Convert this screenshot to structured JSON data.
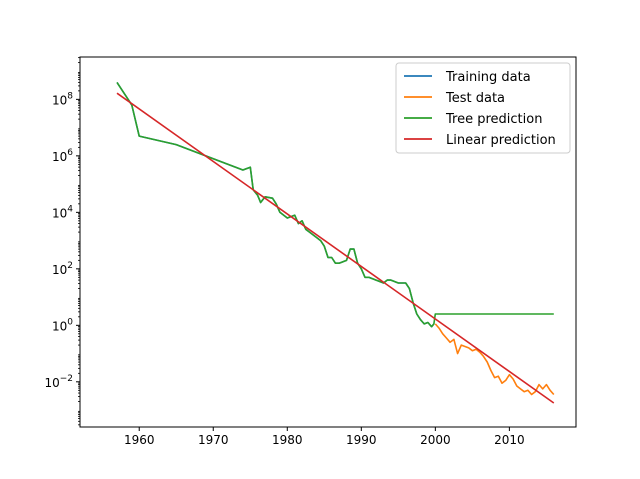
{
  "chart_data": {
    "type": "line",
    "title": "",
    "xlabel": "",
    "ylabel": "",
    "xlim": [
      1952,
      2019
    ],
    "ylim_log10": [
      -3.6,
      9.5
    ],
    "yscale": "log",
    "grid": false,
    "legend_position": "top-right",
    "x_ticks": [
      {
        "value": 1960,
        "label": "1960"
      },
      {
        "value": 1970,
        "label": "1970"
      },
      {
        "value": 1980,
        "label": "1980"
      },
      {
        "value": 1990,
        "label": "1990"
      },
      {
        "value": 2000,
        "label": "2000"
      },
      {
        "value": 2010,
        "label": "2010"
      }
    ],
    "y_ticks": [
      {
        "exp": 8,
        "base": "10",
        "sup": "8"
      },
      {
        "exp": 6,
        "base": "10",
        "sup": "6"
      },
      {
        "exp": 4,
        "base": "10",
        "sup": "4"
      },
      {
        "exp": 2,
        "base": "10",
        "sup": "2"
      },
      {
        "exp": 0,
        "base": "10",
        "sup": "0"
      },
      {
        "exp": -2,
        "base": "10",
        "sup": "−2"
      }
    ],
    "series": [
      {
        "name": "Training data",
        "color": "#1f77b4",
        "points_log10": [
          [
            1957,
            8.6
          ],
          [
            1959,
            7.8
          ],
          [
            1960,
            6.7
          ],
          [
            1965,
            6.4
          ],
          [
            1970,
            5.9
          ],
          [
            1974,
            5.5
          ],
          [
            1975,
            5.6
          ],
          [
            1975.4,
            4.8
          ],
          [
            1976,
            4.6
          ],
          [
            1976.4,
            4.35
          ],
          [
            1977,
            4.55
          ],
          [
            1978,
            4.5
          ],
          [
            1978.5,
            4.3
          ],
          [
            1979,
            4.0
          ],
          [
            1980,
            3.8
          ],
          [
            1981,
            3.9
          ],
          [
            1981.5,
            3.6
          ],
          [
            1982,
            3.7
          ],
          [
            1982.5,
            3.4
          ],
          [
            1983,
            3.3
          ],
          [
            1984,
            3.1
          ],
          [
            1984.5,
            3.0
          ],
          [
            1985,
            2.8
          ],
          [
            1985.5,
            2.4
          ],
          [
            1986,
            2.4
          ],
          [
            1986.5,
            2.2
          ],
          [
            1987,
            2.2
          ],
          [
            1988,
            2.3
          ],
          [
            1988.5,
            2.7
          ],
          [
            1989,
            2.7
          ],
          [
            1989.5,
            2.2
          ],
          [
            1990,
            2.0
          ],
          [
            1990.5,
            1.7
          ],
          [
            1991,
            1.7
          ],
          [
            1992,
            1.6
          ],
          [
            1993,
            1.5
          ],
          [
            1993.5,
            1.6
          ],
          [
            1994,
            1.6
          ],
          [
            1995,
            1.5
          ],
          [
            1996,
            1.5
          ],
          [
            1996.5,
            1.3
          ],
          [
            1997,
            0.8
          ],
          [
            1997.5,
            0.4
          ],
          [
            1998,
            0.2
          ],
          [
            1998.5,
            0.05
          ],
          [
            1999,
            0.1
          ],
          [
            1999.5,
            -0.05
          ],
          [
            1999.8,
            0.05
          ]
        ]
      },
      {
        "name": "Test data",
        "color": "#ff7f0e",
        "points_log10": [
          [
            2000,
            0.05
          ],
          [
            2000.5,
            -0.1
          ],
          [
            2001,
            -0.3
          ],
          [
            2001.5,
            -0.45
          ],
          [
            2002,
            -0.6
          ],
          [
            2002.5,
            -0.5
          ],
          [
            2003,
            -1.0
          ],
          [
            2003.5,
            -0.7
          ],
          [
            2004,
            -0.75
          ],
          [
            2004.5,
            -0.8
          ],
          [
            2005,
            -0.9
          ],
          [
            2005.5,
            -0.85
          ],
          [
            2006,
            -0.95
          ],
          [
            2006.5,
            -1.1
          ],
          [
            2007,
            -1.3
          ],
          [
            2007.5,
            -1.6
          ],
          [
            2008,
            -1.85
          ],
          [
            2008.5,
            -1.8
          ],
          [
            2009,
            -2.05
          ],
          [
            2009.5,
            -1.95
          ],
          [
            2010,
            -1.75
          ],
          [
            2010.5,
            -1.9
          ],
          [
            2011,
            -2.15
          ],
          [
            2011.5,
            -2.25
          ],
          [
            2012,
            -2.35
          ],
          [
            2012.5,
            -2.3
          ],
          [
            2013,
            -2.45
          ],
          [
            2013.5,
            -2.35
          ],
          [
            2014,
            -2.1
          ],
          [
            2014.5,
            -2.25
          ],
          [
            2015,
            -2.1
          ],
          [
            2015.5,
            -2.3
          ],
          [
            2016,
            -2.45
          ]
        ]
      },
      {
        "name": "Tree prediction",
        "color": "#2ca02c",
        "points_log10": [
          [
            1957,
            8.6
          ],
          [
            1959,
            7.8
          ],
          [
            1960,
            6.7
          ],
          [
            1965,
            6.4
          ],
          [
            1970,
            5.9
          ],
          [
            1974,
            5.5
          ],
          [
            1975,
            5.6
          ],
          [
            1975.4,
            4.8
          ],
          [
            1976,
            4.6
          ],
          [
            1976.4,
            4.35
          ],
          [
            1977,
            4.55
          ],
          [
            1978,
            4.5
          ],
          [
            1978.5,
            4.3
          ],
          [
            1979,
            4.0
          ],
          [
            1980,
            3.8
          ],
          [
            1981,
            3.9
          ],
          [
            1981.5,
            3.6
          ],
          [
            1982,
            3.7
          ],
          [
            1982.5,
            3.4
          ],
          [
            1983,
            3.3
          ],
          [
            1984,
            3.1
          ],
          [
            1984.5,
            3.0
          ],
          [
            1985,
            2.8
          ],
          [
            1985.5,
            2.4
          ],
          [
            1986,
            2.4
          ],
          [
            1986.5,
            2.2
          ],
          [
            1987,
            2.2
          ],
          [
            1988,
            2.3
          ],
          [
            1988.5,
            2.7
          ],
          [
            1989,
            2.7
          ],
          [
            1989.5,
            2.2
          ],
          [
            1990,
            2.0
          ],
          [
            1990.5,
            1.7
          ],
          [
            1991,
            1.7
          ],
          [
            1992,
            1.6
          ],
          [
            1993,
            1.5
          ],
          [
            1993.5,
            1.6
          ],
          [
            1994,
            1.6
          ],
          [
            1995,
            1.5
          ],
          [
            1996,
            1.5
          ],
          [
            1996.5,
            1.3
          ],
          [
            1997,
            0.8
          ],
          [
            1997.5,
            0.4
          ],
          [
            1998,
            0.2
          ],
          [
            1998.5,
            0.05
          ],
          [
            1999,
            0.1
          ],
          [
            1999.5,
            -0.05
          ],
          [
            1999.8,
            0.05
          ],
          [
            2000,
            0.4
          ],
          [
            2016,
            0.4
          ]
        ]
      },
      {
        "name": "Linear prediction",
        "color": "#d62728",
        "points_log10": [
          [
            1957,
            8.22
          ],
          [
            2016,
            -2.75
          ]
        ]
      }
    ]
  }
}
